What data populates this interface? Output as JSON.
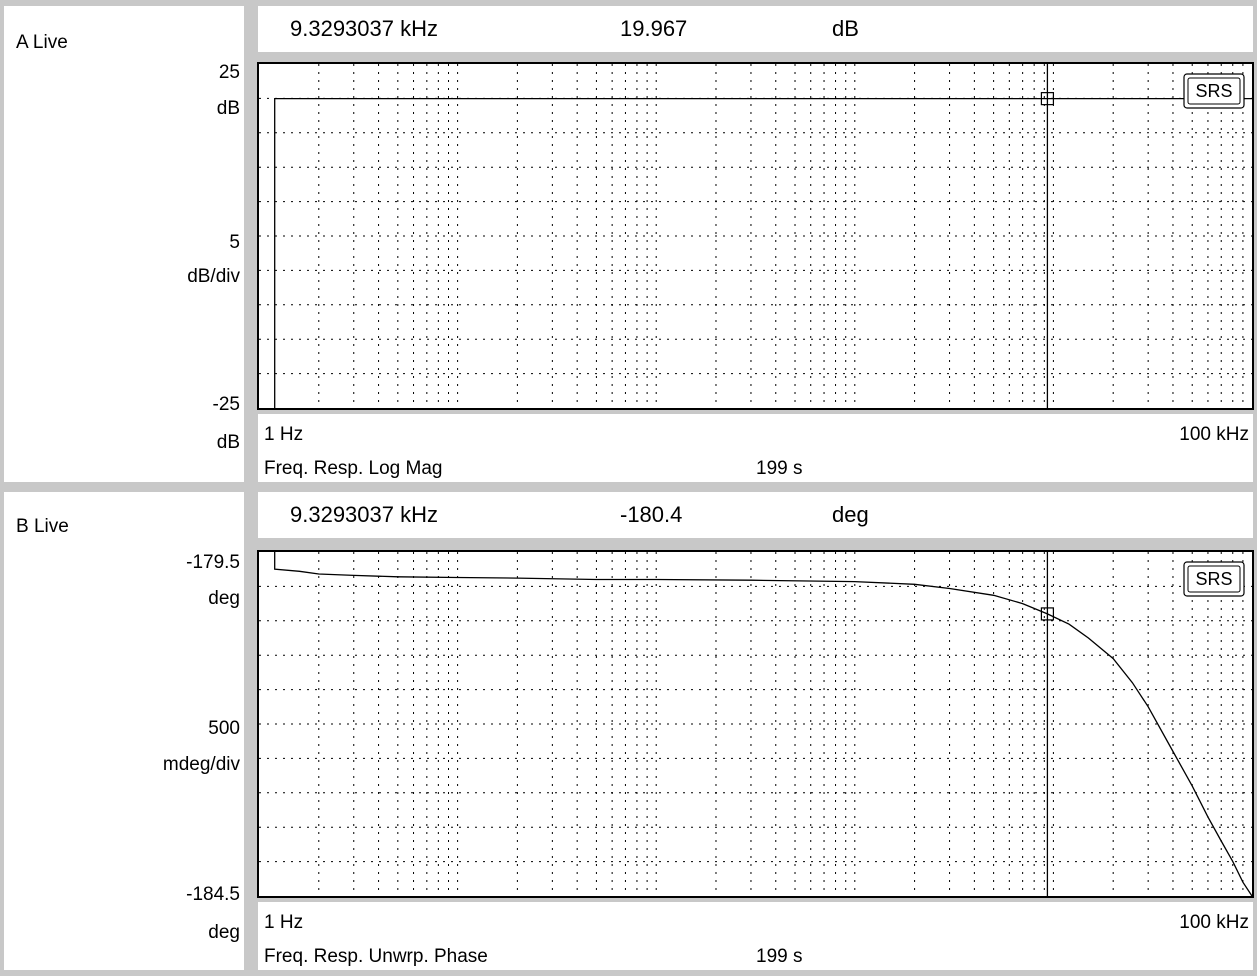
{
  "chart_data": [
    {
      "type": "line",
      "panel_label": "A Live",
      "header": {
        "frequency": "9.3293037 kHz",
        "value": "19.967",
        "unit": "dB"
      },
      "y_top": "25",
      "y_top_unit": "dB",
      "y_scale": "5",
      "y_scale_unit": "dB/div",
      "y_bottom": "-25",
      "y_bottom_unit": "dB",
      "x_start": "1 Hz",
      "x_end": "100 kHz",
      "measurement": "Freq. Resp. Log Mag",
      "time": "199 s",
      "badge": "SRS",
      "xscale": "log",
      "xlim": [
        1,
        100000
      ],
      "ylim": [
        -25,
        25
      ],
      "cursor_x": 9329.3037,
      "x": [
        1.2,
        1.2,
        100000
      ],
      "y": [
        -25,
        19.967,
        19.967
      ]
    },
    {
      "type": "line",
      "panel_label": "B Live",
      "header": {
        "frequency": "9.3293037 kHz",
        "value": "-180.4",
        "unit": "deg"
      },
      "y_top": "-179.5",
      "y_top_unit": "deg",
      "y_scale": "500",
      "y_scale_unit": "mdeg/div",
      "y_bottom": "-184.5",
      "y_bottom_unit": "deg",
      "x_start": "1 Hz",
      "x_end": "100 kHz",
      "measurement": "Freq. Resp. Unwrp. Phase",
      "time": "199 s",
      "badge": "SRS",
      "xscale": "log",
      "xlim": [
        1,
        100000
      ],
      "ylim": [
        -184.5,
        -179.5
      ],
      "cursor_x": 9329.3037,
      "x": [
        1.2,
        1.2,
        1.6,
        2,
        3,
        5,
        10,
        20,
        50,
        100,
        300,
        1000,
        2000,
        3000,
        5000,
        7000,
        9329,
        12000,
        15000,
        20000,
        25000,
        30000,
        40000,
        50000,
        60000,
        70000,
        80000,
        90000,
        100000
      ],
      "y": [
        -179.5,
        -179.75,
        -179.78,
        -179.82,
        -179.84,
        -179.86,
        -179.87,
        -179.88,
        -179.9,
        -179.9,
        -179.91,
        -179.93,
        -179.97,
        -180.03,
        -180.13,
        -180.25,
        -180.4,
        -180.55,
        -180.75,
        -181.05,
        -181.4,
        -181.75,
        -182.4,
        -182.9,
        -183.35,
        -183.7,
        -184.0,
        -184.3,
        -184.5
      ]
    }
  ]
}
